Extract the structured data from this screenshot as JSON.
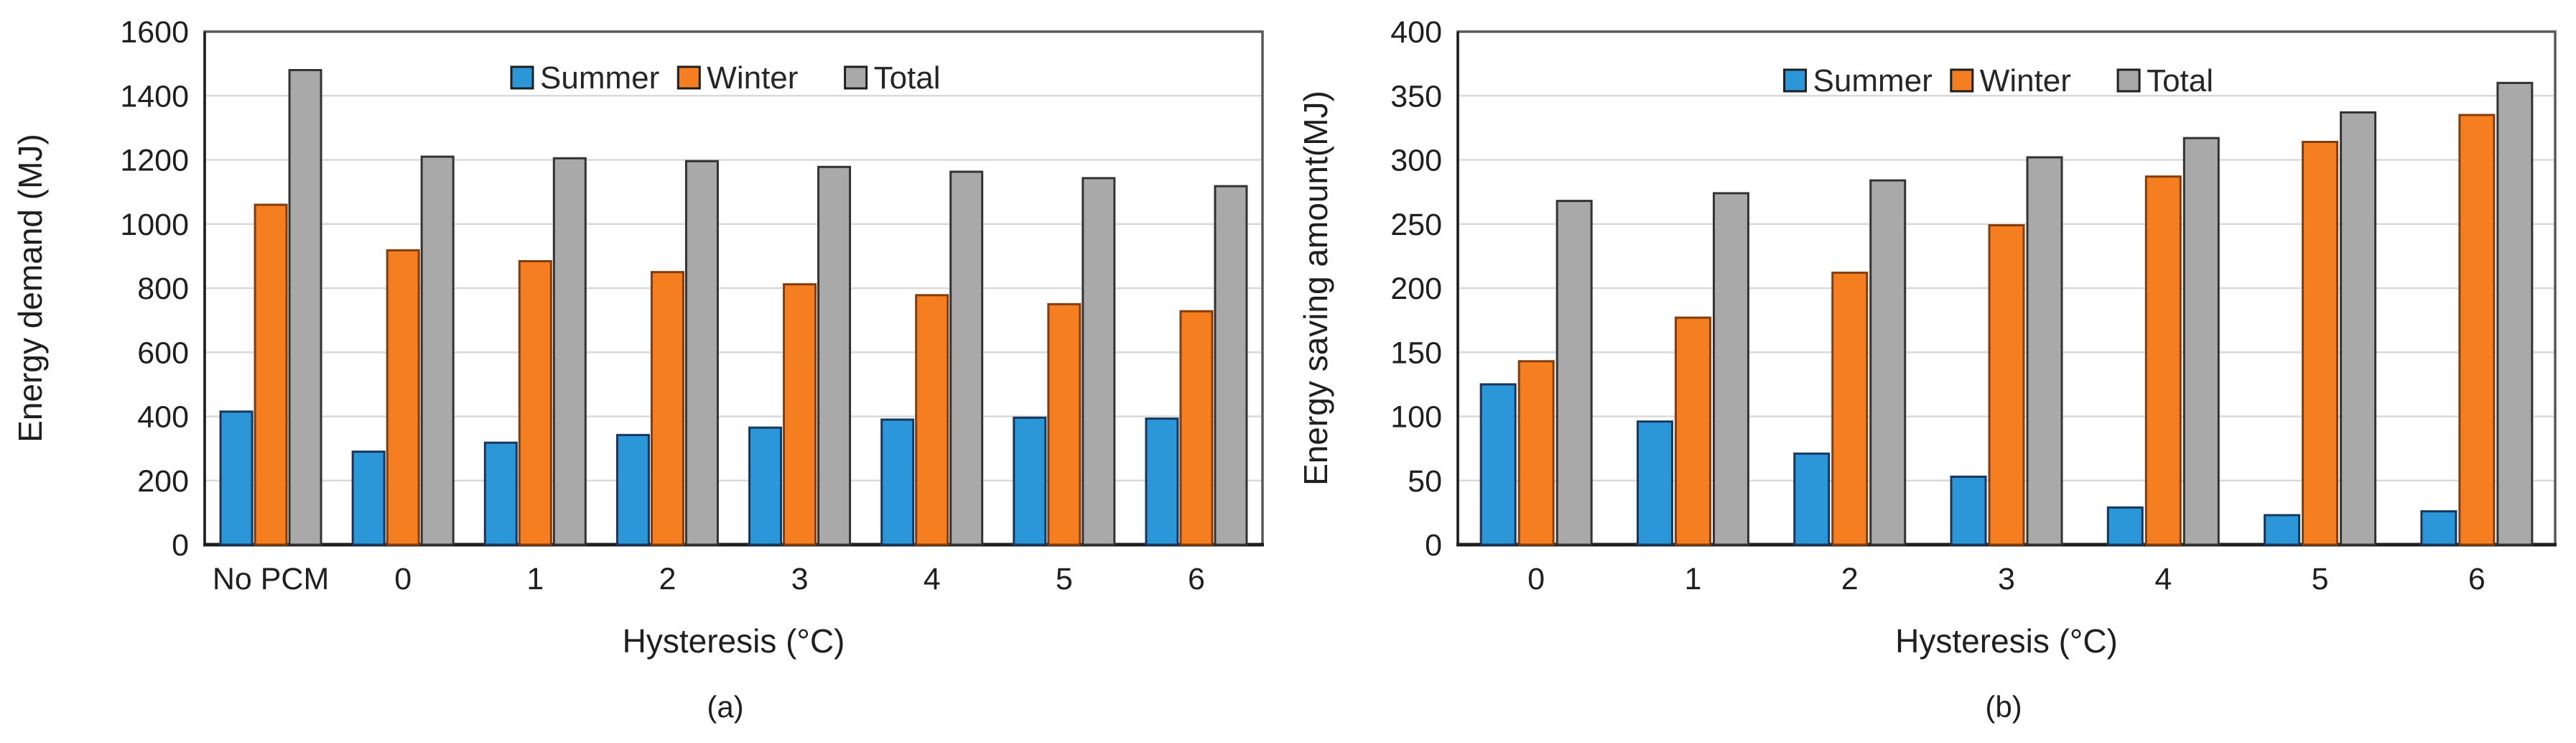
{
  "styles": {
    "background": "#ffffff",
    "grid_color": "#d9d9d9",
    "plot_border_color": "#595959",
    "axis_line_color": "#1f1f1f",
    "text_color": "#1f1f1f",
    "legend_text_color": "#262626",
    "summer_color": "#2b97d8",
    "winter_color": "#f57e20",
    "total_color": "#a9a9a9"
  },
  "chart_data": [
    {
      "id": "a",
      "type": "bar",
      "caption": "(a)",
      "xlabel": "Hysteresis (°C)",
      "ylabel": "Energy demand (MJ)",
      "categories": [
        "No PCM",
        "0",
        "1",
        "2",
        "3",
        "4",
        "5",
        "6"
      ],
      "series": [
        {
          "name": "Summer",
          "fill": "#2b97d8",
          "border": "#17375e",
          "values": [
            415,
            290,
            318,
            342,
            365,
            390,
            396,
            393
          ]
        },
        {
          "name": "Winter",
          "fill": "#f57e20",
          "border": "#843c0c",
          "values": [
            1060,
            918,
            884,
            850,
            812,
            778,
            750,
            728
          ]
        },
        {
          "name": "Total",
          "fill": "#a9a9a9",
          "border": "#333333",
          "values": [
            1480,
            1210,
            1205,
            1196,
            1178,
            1163,
            1143,
            1118
          ]
        }
      ],
      "ylim": [
        0,
        1600
      ],
      "ytick_step": 200,
      "grid": true,
      "legend_position": "top-center-inside"
    },
    {
      "id": "b",
      "type": "bar",
      "caption": "(b)",
      "xlabel": "Hysteresis (°C)",
      "ylabel": "Energy saving amount(MJ)",
      "categories": [
        "0",
        "1",
        "2",
        "3",
        "4",
        "5",
        "6"
      ],
      "series": [
        {
          "name": "Summer",
          "fill": "#2b97d8",
          "border": "#17375e",
          "values": [
            125,
            96,
            71,
            53,
            29,
            23,
            26
          ]
        },
        {
          "name": "Winter",
          "fill": "#f57e20",
          "border": "#843c0c",
          "values": [
            143,
            177,
            212,
            249,
            287,
            314,
            335
          ]
        },
        {
          "name": "Total",
          "fill": "#a9a9a9",
          "border": "#333333",
          "values": [
            268,
            274,
            284,
            302,
            317,
            337,
            360
          ]
        }
      ],
      "ylim": [
        0,
        400
      ],
      "ytick_step": 50,
      "grid": true,
      "legend_position": "top-center-inside"
    }
  ]
}
